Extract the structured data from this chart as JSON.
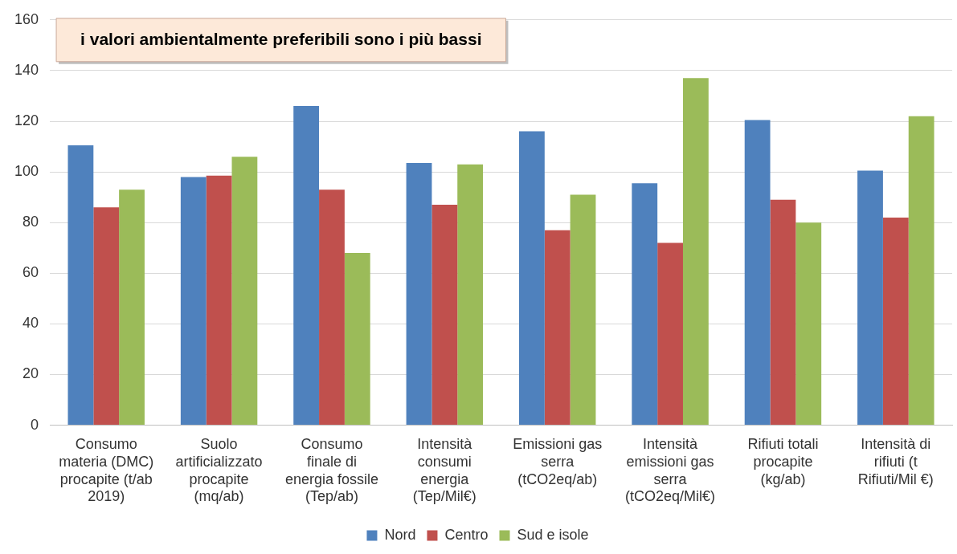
{
  "chart_data": {
    "type": "bar",
    "title": "i valori ambientalmente preferibili sono i più bassi",
    "categories": [
      "Consumo materia (DMC) procapite (t/ab 2019)",
      "Suolo artificializzato procapite (mq/ab)",
      "Consumo finale di energia fossile (Tep/ab)",
      "Intensità consumi energia (Tep/Mil€)",
      "Emissioni gas serra (tCO2eq/ab)",
      "Intensità emissioni gas serra (tCO2eq/Mil€)",
      "Rifiuti totali procapite (kg/ab)",
      "Intensità di rifiuti (t Rifiuti/Mil €)"
    ],
    "series": [
      {
        "name": "Nord",
        "color": "#4f81bd",
        "values": [
          110.5,
          98,
          126,
          103.5,
          116,
          95.5,
          120.5,
          100.5
        ]
      },
      {
        "name": "Centro",
        "color": "#c0504d",
        "values": [
          86,
          98.5,
          93,
          87,
          77,
          72,
          89,
          82
        ]
      },
      {
        "name": "Sud e isole",
        "color": "#9bbb59",
        "values": [
          93,
          106,
          68,
          103,
          91,
          137,
          80,
          122
        ]
      }
    ],
    "ylim": [
      0,
      160
    ],
    "yticks": [
      0,
      20,
      40,
      60,
      80,
      100,
      120,
      140,
      160
    ],
    "grid": "y",
    "legend": "bottom"
  }
}
